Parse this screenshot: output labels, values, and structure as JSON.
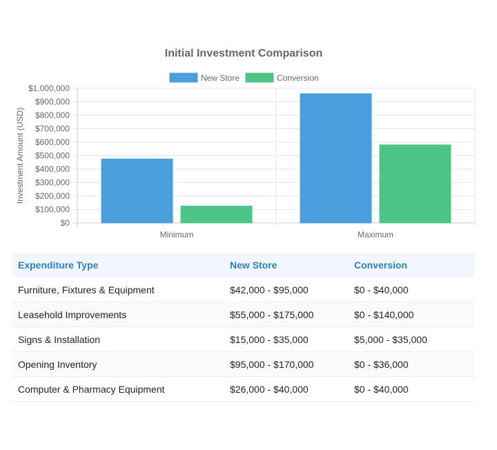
{
  "chart_data": {
    "type": "bar",
    "title": "Initial Investment Comparison",
    "categories": [
      "Minimum",
      "Maximum"
    ],
    "series": [
      {
        "name": "New Store",
        "values": [
          475000,
          960000
        ],
        "color": "#4a9edc"
      },
      {
        "name": "Conversion",
        "values": [
          125000,
          580000
        ],
        "color": "#4cc486"
      }
    ],
    "xlabel": "",
    "ylabel": "Investment Amount (USD)",
    "ylim": [
      0,
      1000000
    ],
    "yticks": [
      "$0",
      "$100,000",
      "$200,000",
      "$300,000",
      "$400,000",
      "$500,000",
      "$600,000",
      "$700,000",
      "$800,000",
      "$900,000",
      "$1,000,000"
    ],
    "grid": true,
    "legend_position": "top"
  },
  "table": {
    "headers": [
      "Expenditure Type",
      "New Store",
      "Conversion"
    ],
    "rows": [
      [
        "Furniture, Fixtures & Equipment",
        "$42,000 - $95,000",
        "$0 - $40,000"
      ],
      [
        "Leasehold Improvements",
        "$55,000 - $175,000",
        "$0 - $140,000"
      ],
      [
        "Signs & Installation",
        "$15,000 - $35,000",
        "$5,000 - $35,000"
      ],
      [
        "Opening Inventory",
        "$95,000 - $170,000",
        "$0 - $36,000"
      ],
      [
        "Computer & Pharmacy Equipment",
        "$26,000 - $40,000",
        "$0 - $40,000"
      ]
    ]
  },
  "colors": {
    "header_text": "#2a7ec2",
    "header_bg": "#f1f7fc",
    "grid": "#e5e5e5"
  }
}
